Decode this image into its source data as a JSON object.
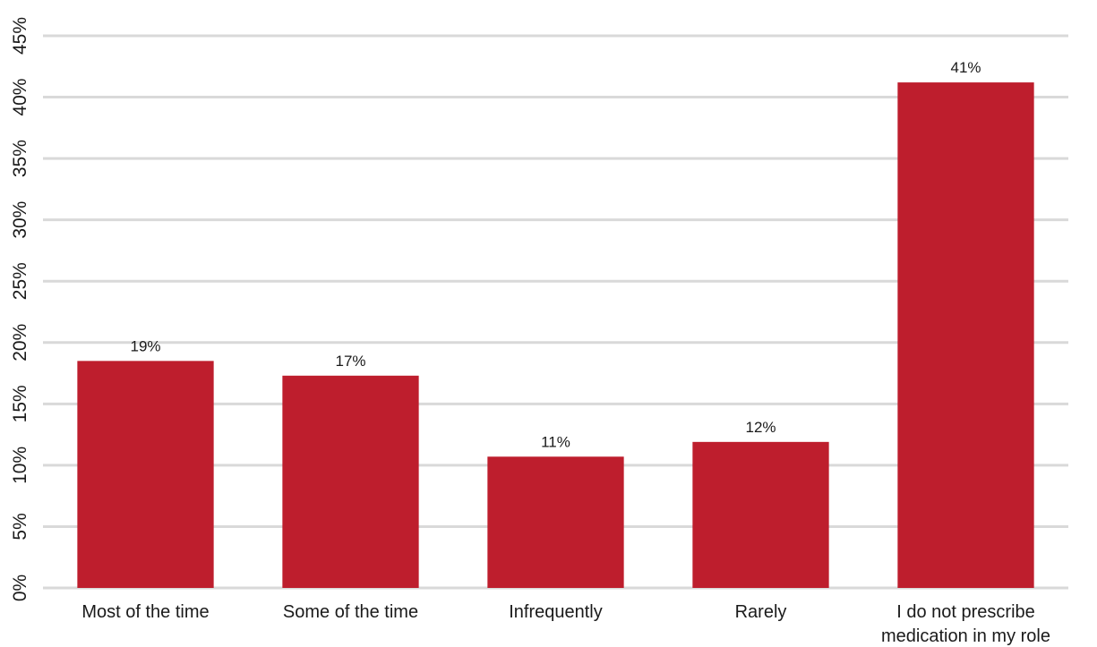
{
  "chart_data": {
    "type": "bar",
    "categories": [
      [
        "Most of the time"
      ],
      [
        "Some of the time"
      ],
      [
        "Infrequently"
      ],
      [
        "Rarely"
      ],
      [
        "I do not prescribe",
        "medication in my role"
      ]
    ],
    "values": [
      18.5,
      17.3,
      10.7,
      11.9,
      41.2
    ],
    "data_labels": [
      "19%",
      "17%",
      "11%",
      "12%",
      "41%"
    ],
    "y_ticks": [
      "0%",
      "5%",
      "10%",
      "15%",
      "20%",
      "25%",
      "30%",
      "35%",
      "40%",
      "45%"
    ],
    "ylim": [
      0,
      45
    ],
    "grid": true,
    "colors": {
      "bar": "#BE1E2D",
      "grid": "#D9D9D9"
    }
  }
}
